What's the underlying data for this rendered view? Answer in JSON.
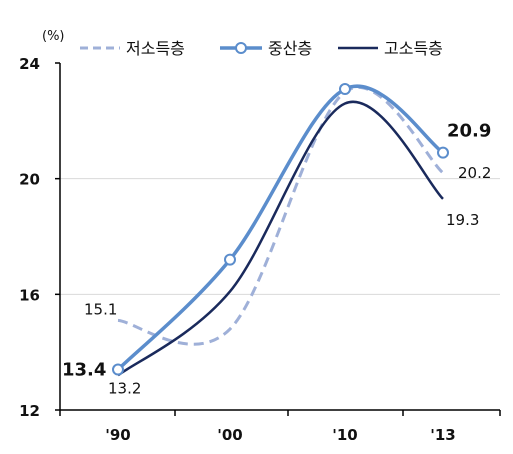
{
  "chart_data": {
    "type": "line",
    "unit_label": "(%)",
    "x": [
      "'90",
      "'00",
      "'10",
      "'13"
    ],
    "ylim": [
      12,
      24
    ],
    "yticks": [
      "24",
      "20",
      "16",
      "12"
    ],
    "grid": true,
    "legend_position": "top",
    "series": [
      {
        "name": "저소득층",
        "style": "dashed",
        "color": "#9fb0d8",
        "values": [
          15.1,
          14.8,
          23.0,
          20.2
        ],
        "start_label": "15.1",
        "end_label": "20.2"
      },
      {
        "name": "중산층",
        "style": "solid-marker",
        "color": "#5b8dcc",
        "values": [
          13.4,
          17.2,
          23.1,
          20.9
        ],
        "start_label": "13.4",
        "end_label": "20.9"
      },
      {
        "name": "고소득층",
        "style": "solid",
        "color": "#1a2a5c",
        "values": [
          13.2,
          16.1,
          22.6,
          19.3
        ],
        "start_label": "13.2",
        "end_label": "19.3"
      }
    ]
  }
}
